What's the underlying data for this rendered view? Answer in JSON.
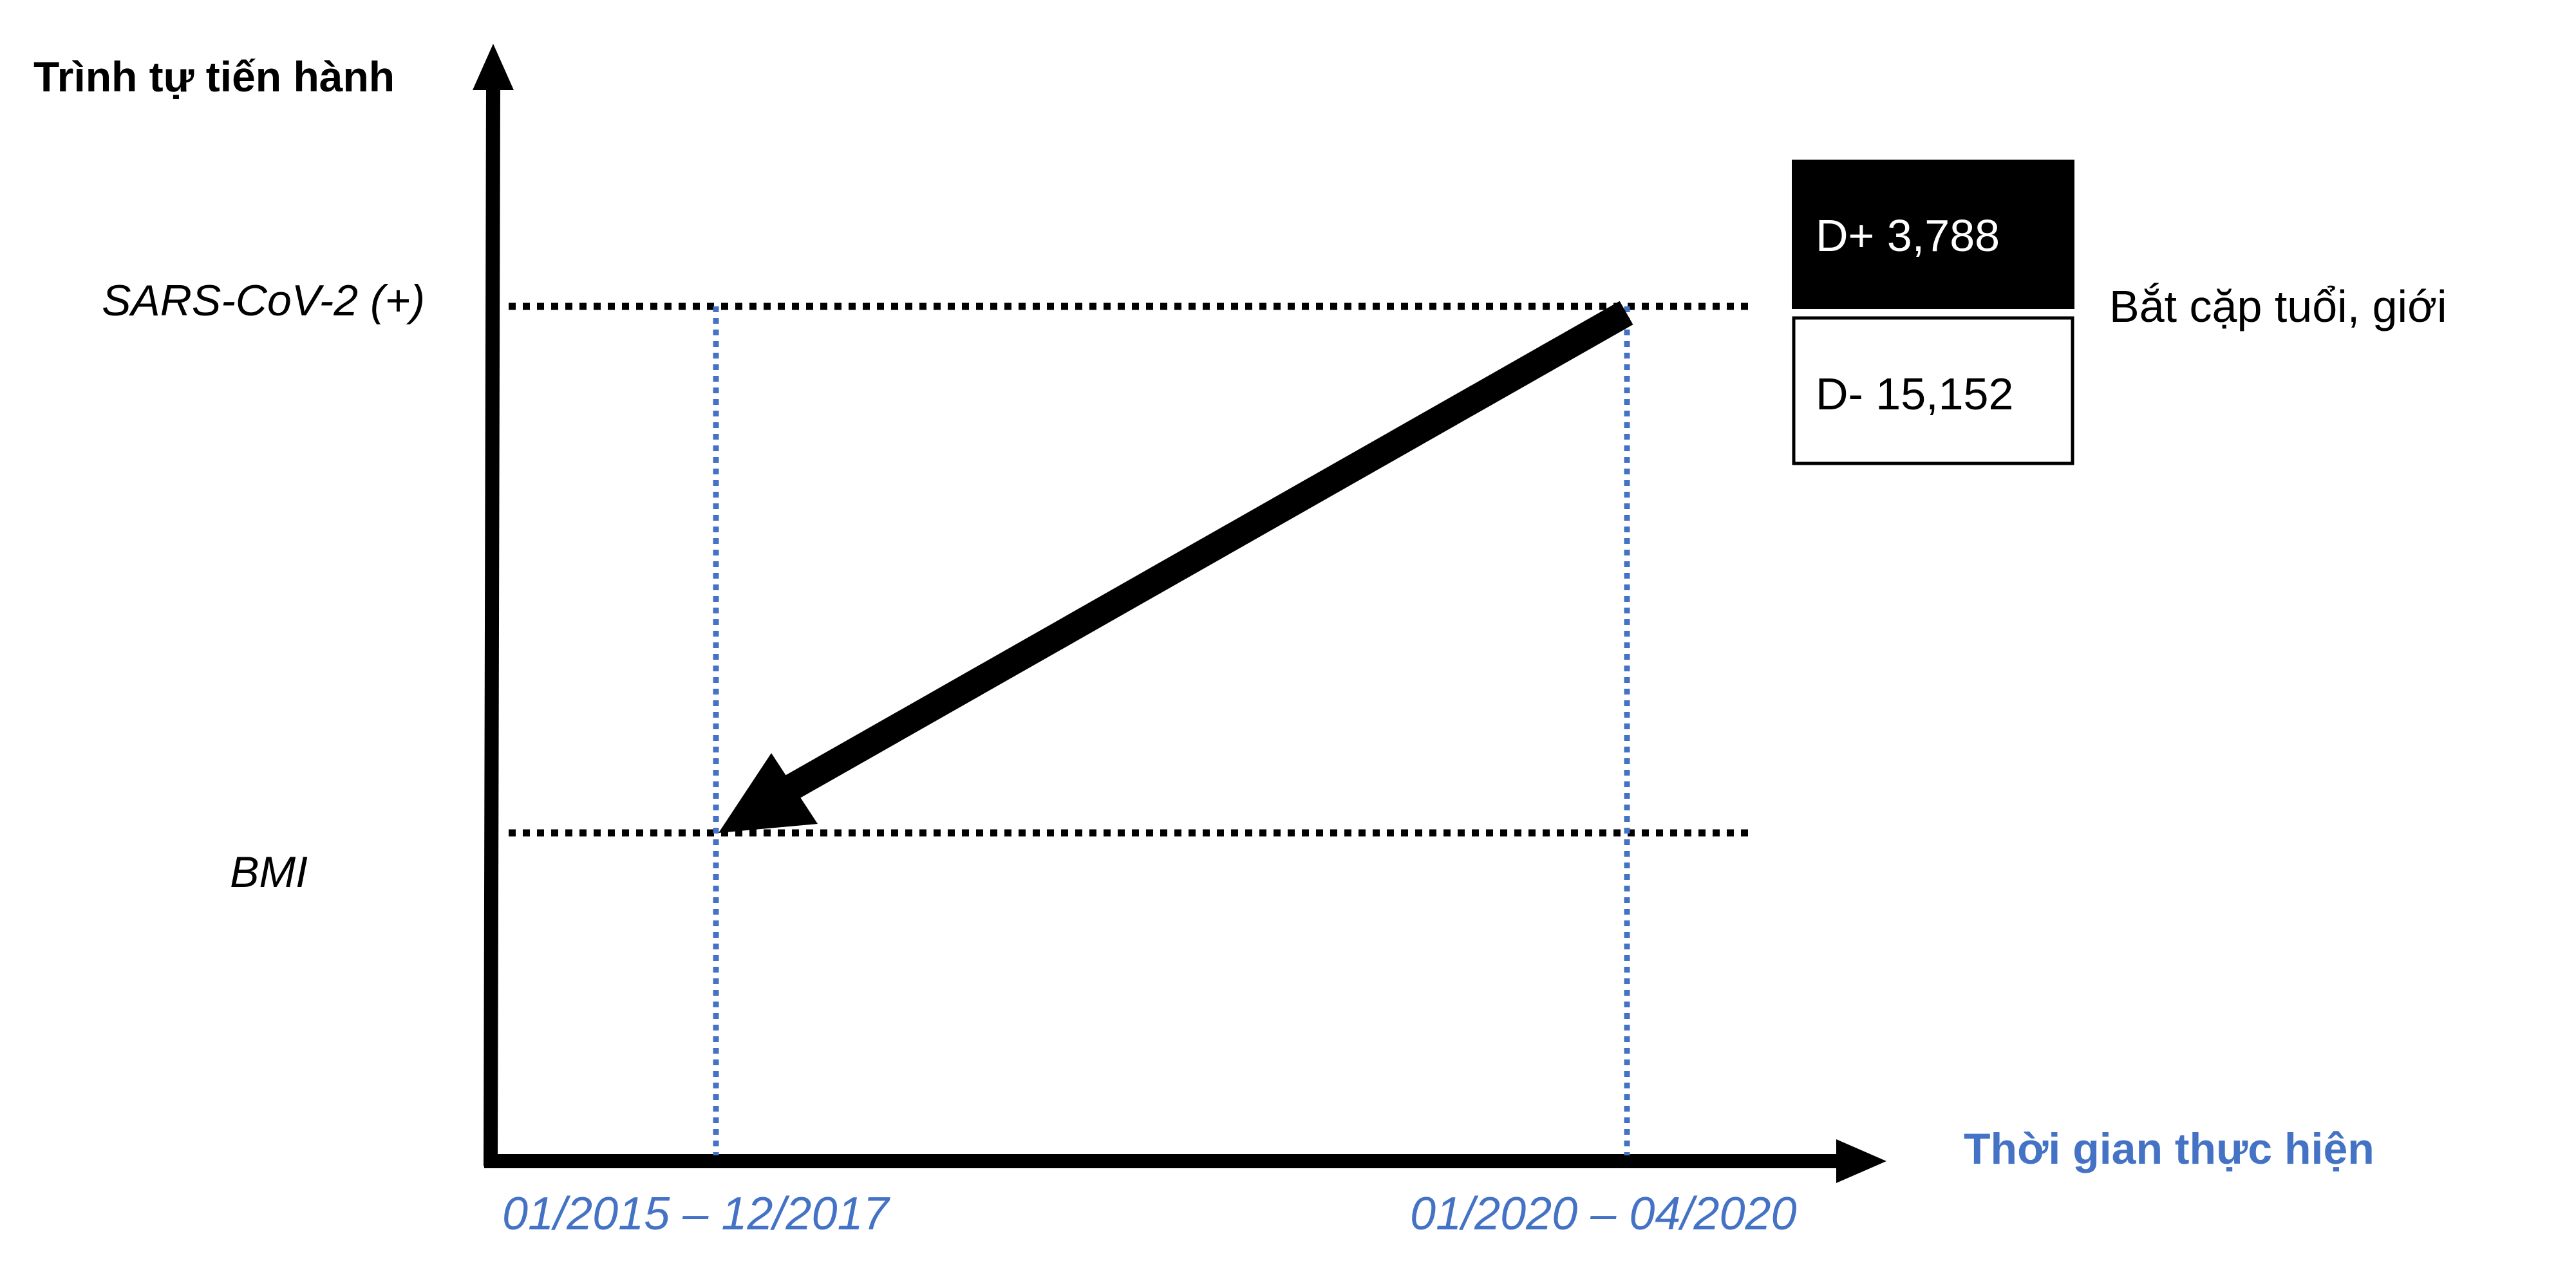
{
  "axes": {
    "y_title": "Trình tự tiến hành",
    "x_title": "Thời gian thực hiện"
  },
  "levels": {
    "upper": "SARS-CoV-2 (+)",
    "lower": "BMI"
  },
  "periods": {
    "left": "01/2015 – 12/2017",
    "right": "01/2020 – 04/2020"
  },
  "groups": {
    "positive": "D+ 3,788",
    "negative": "D- 15,152",
    "matching": "Bắt cặp tuổi, giới"
  },
  "colors": {
    "blue": "#4472c4",
    "black": "#000000",
    "white": "#ffffff"
  }
}
